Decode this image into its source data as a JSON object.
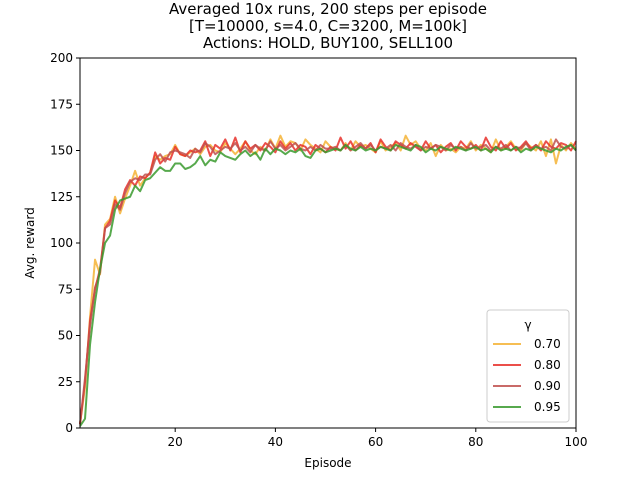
{
  "chart_data": {
    "type": "line",
    "title": [
      "Averaged 10x runs, 200 steps per episode",
      "[T=10000, s=4.0, C=3200, M=100k]",
      "Actions: HOLD, BUY100, SELL100"
    ],
    "xlabel": "Episode",
    "ylabel": "Avg. reward",
    "xlim": [
      1,
      100
    ],
    "ylim": [
      0,
      200
    ],
    "xticks": [
      20,
      40,
      60,
      80,
      100
    ],
    "yticks": [
      0,
      25,
      50,
      75,
      100,
      125,
      150,
      175,
      200
    ],
    "legend_title": "γ",
    "legend_position": "lower-right",
    "series": [
      {
        "name": "0.70",
        "color": "#f5b335",
        "values": [
          2,
          22,
          60,
          91,
          83,
          110,
          113,
          125,
          116,
          124,
          131,
          139,
          131,
          135,
          138,
          147,
          145,
          147,
          148,
          153,
          148,
          147,
          149,
          151,
          148,
          152,
          153,
          150,
          149,
          154,
          151,
          148,
          151,
          155,
          150,
          148,
          152,
          150,
          156,
          151,
          158,
          152,
          155,
          154,
          150,
          156,
          153,
          151,
          149,
          155,
          152,
          151,
          150,
          154,
          150,
          155,
          152,
          153,
          151,
          149,
          155,
          150,
          152,
          154,
          150,
          158,
          153,
          155,
          151,
          150,
          154,
          147,
          153,
          150,
          151,
          149,
          152,
          151,
          155,
          150,
          153,
          151,
          149,
          156,
          150,
          152,
          155,
          151,
          150,
          154,
          152,
          150,
          155,
          147,
          156,
          143,
          153,
          150,
          154,
          151
        ]
      },
      {
        "name": "0.80",
        "color": "#e8302a",
        "values": [
          2,
          25,
          58,
          75,
          86,
          108,
          112,
          123,
          119,
          129,
          134,
          131,
          136,
          135,
          138,
          149,
          143,
          146,
          145,
          152,
          148,
          147,
          150,
          149,
          150,
          155,
          147,
          153,
          151,
          156,
          150,
          157,
          149,
          155,
          151,
          153,
          150,
          154,
          152,
          149,
          155,
          151,
          154,
          150,
          153,
          152,
          148,
          153,
          151,
          149,
          152,
          150,
          157,
          151,
          155,
          150,
          153,
          151,
          154,
          149,
          156,
          152,
          150,
          155,
          153,
          151,
          154,
          152,
          150,
          155,
          151,
          153,
          149,
          152,
          154,
          150,
          155,
          152,
          151,
          153,
          150,
          157,
          152,
          150,
          155,
          151,
          154,
          150,
          152,
          155,
          151,
          153,
          150,
          155,
          152,
          151,
          154,
          153,
          150,
          155
        ]
      },
      {
        "name": "0.90",
        "color": "#c0504d",
        "values": [
          2,
          27,
          55,
          76,
          84,
          108,
          110,
          121,
          118,
          127,
          133,
          135,
          134,
          137,
          137,
          145,
          148,
          144,
          149,
          150,
          149,
          148,
          146,
          151,
          149,
          154,
          152,
          148,
          150,
          152,
          151,
          154,
          150,
          152,
          149,
          153,
          151,
          150,
          155,
          151,
          153,
          150,
          152,
          154,
          151,
          150,
          152,
          150,
          153,
          151,
          151,
          152,
          150,
          153,
          150,
          152,
          154,
          151,
          153,
          150,
          152,
          151,
          153,
          150,
          154,
          152,
          151,
          153,
          150,
          152,
          151,
          153,
          152,
          150,
          153,
          151,
          152,
          150,
          154,
          151,
          152,
          153,
          150,
          152,
          151,
          153,
          150,
          152,
          151,
          154,
          150,
          153,
          151,
          152,
          150,
          156,
          152,
          151,
          153,
          150
        ]
      },
      {
        "name": "0.95",
        "color": "#3a9a2e",
        "values": [
          1,
          5,
          45,
          68,
          86,
          100,
          104,
          118,
          123,
          124,
          125,
          131,
          128,
          134,
          135,
          138,
          141,
          139,
          139,
          143,
          143,
          140,
          141,
          143,
          147,
          142,
          145,
          144,
          149,
          147,
          146,
          145,
          148,
          150,
          147,
          149,
          145,
          151,
          148,
          151,
          150,
          148,
          150,
          149,
          151,
          147,
          146,
          150,
          151,
          149,
          150,
          151,
          150,
          153,
          151,
          150,
          152,
          150,
          151,
          150,
          152,
          151,
          150,
          153,
          152,
          151,
          150,
          153,
          152,
          149,
          151,
          150,
          152,
          151,
          150,
          152,
          151,
          150,
          151,
          152,
          150,
          151,
          149,
          152,
          150,
          151,
          150,
          152,
          149,
          151,
          150,
          152,
          151,
          150,
          149,
          151,
          150,
          152,
          153,
          150
        ]
      }
    ]
  }
}
